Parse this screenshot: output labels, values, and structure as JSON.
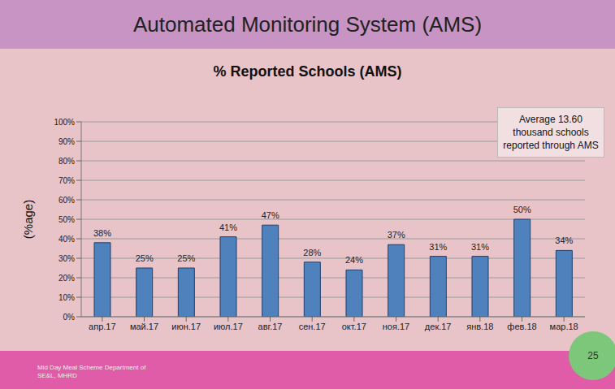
{
  "header": {
    "title": "Automated Monitoring System (AMS)"
  },
  "footer": {
    "text": "Mid Day Meal Scheme Department of SE&L, MHRD",
    "page_number": 25
  },
  "chart_data": {
    "type": "bar",
    "title": "% Reported Schools (AMS)",
    "ylabel": "(%age)",
    "annotations": [
      "Average 13.60 thousand schools reported through AMS"
    ],
    "categories": [
      "апр.17",
      "май.17",
      "июн.17",
      "июл.17",
      "авг.17",
      "сен.17",
      "окт.17",
      "ноя.17",
      "дек.17",
      "янв.18",
      "фев.18",
      "мар.18"
    ],
    "values": [
      38,
      25,
      25,
      41,
      47,
      28,
      24,
      37,
      31,
      31,
      50,
      34
    ],
    "value_labels": [
      "38%",
      "25%",
      "25%",
      "41%",
      "47%",
      "28%",
      "24%",
      "37%",
      "31%",
      "31%",
      "50%",
      "34%"
    ],
    "data_labels": true,
    "color": "#4f81bd",
    "ylim": [
      0,
      100
    ],
    "yticks": [
      {
        "value": 0,
        "label": "0%"
      },
      {
        "value": 10,
        "label": "10%"
      },
      {
        "value": 20,
        "label": "20%"
      },
      {
        "value": 30,
        "label": "30%"
      },
      {
        "value": 40,
        "label": "40%"
      },
      {
        "value": 50,
        "label": "50%"
      },
      {
        "value": 60,
        "label": "60%"
      },
      {
        "value": 70,
        "label": "70%"
      },
      {
        "value": 80,
        "label": "80%"
      },
      {
        "value": 90,
        "label": "90%"
      },
      {
        "value": 100,
        "label": "100%"
      }
    ],
    "grid": true
  }
}
